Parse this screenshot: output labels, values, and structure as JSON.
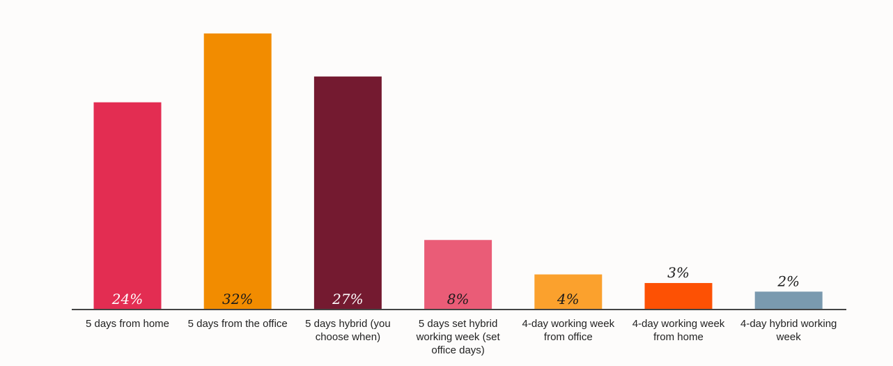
{
  "chart_data": {
    "type": "bar",
    "categories": [
      "5 days from home",
      "5 days from the office",
      "5 days hybrid (you choose when)",
      "5 days set hybrid working week (set office days)",
      "4-day working week from office",
      "4-day working week from home",
      "4-day hybrid working week"
    ],
    "values": [
      24,
      32,
      27,
      8,
      4,
      3,
      2
    ],
    "value_labels": [
      "24%",
      "32%",
      "27%",
      "8%",
      "4%",
      "3%",
      "2%"
    ],
    "colors": [
      "#e32d52",
      "#f28c00",
      "#741a30",
      "#ea5c77",
      "#fba12d",
      "#fd5104",
      "#7a9aaf"
    ],
    "ylim": [
      0,
      32
    ],
    "title": "",
    "xlabel": "",
    "ylabel": "",
    "grid": false,
    "legend": "none"
  }
}
